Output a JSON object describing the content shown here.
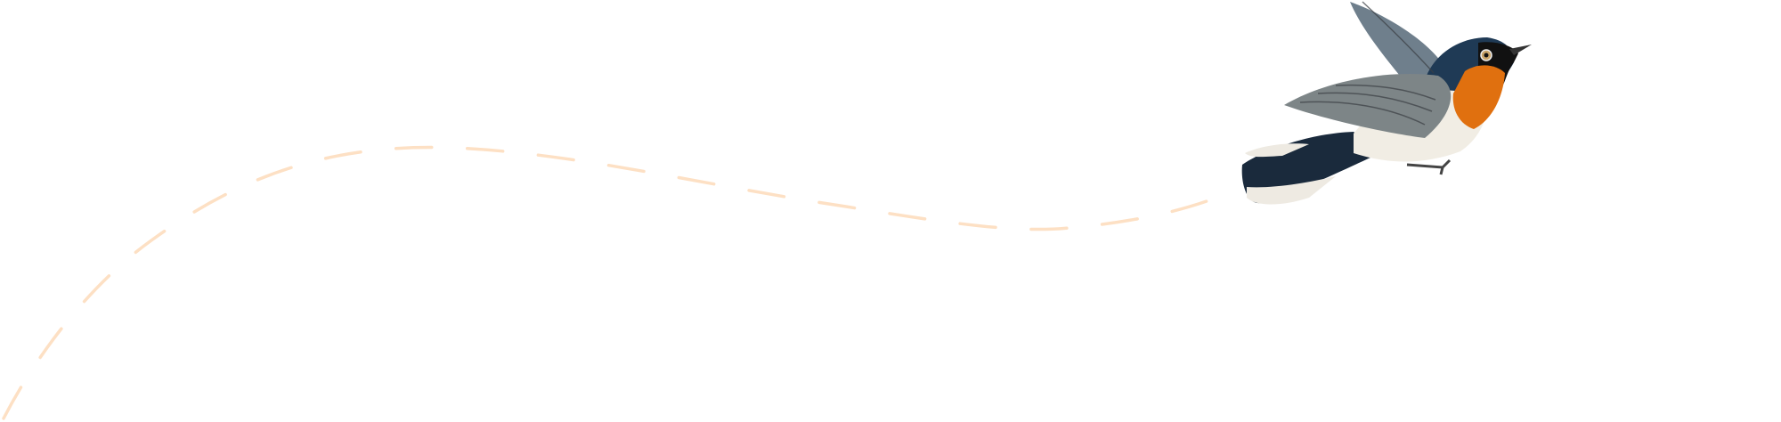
{
  "colors": {
    "background": "#ffffff",
    "flight_path": "#fde0c4",
    "bird_blue": "#1f3a55",
    "bird_orange": "#e0700f",
    "bird_wing": "#7d8587",
    "bird_belly": "#f1ede4"
  },
  "icons": {
    "bird": "flycatcher-illustration",
    "path": "dashed-flight-path"
  }
}
